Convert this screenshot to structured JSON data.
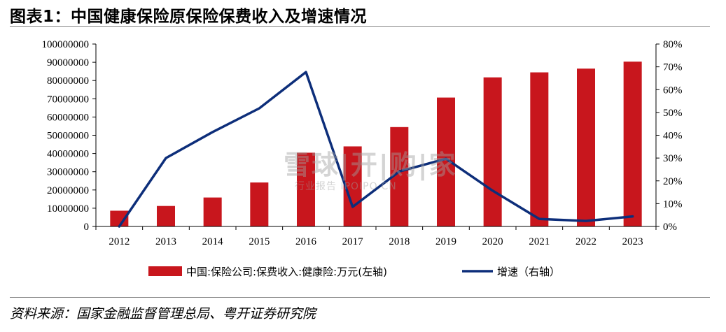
{
  "title": "图表1：中国健康保险原保险保费收入及增速情况",
  "source": "资料来源：国家金融监督管理总局、粤开证券研究院",
  "watermark": {
    "main": "雪球|开|购|家",
    "sub": "行业报告 IPOIPO.CN"
  },
  "colors": {
    "bar": "#c8161d",
    "line": "#0d2e7a",
    "axis": "#000000"
  },
  "chart_data": {
    "type": "bar",
    "categories": [
      "2012",
      "2013",
      "2014",
      "2015",
      "2016",
      "2017",
      "2018",
      "2019",
      "2020",
      "2021",
      "2022",
      "2023"
    ],
    "series": [
      {
        "name": "中国:保险公司:保费收入:健康险:万元(左轴)",
        "type": "bar",
        "axis": "left",
        "values": [
          8630000,
          11230000,
          15870000,
          24100000,
          40430000,
          43890000,
          54480000,
          70660000,
          81730000,
          84470000,
          86530000,
          90350000
        ]
      },
      {
        "name": "增速（右轴）",
        "type": "line",
        "axis": "right",
        "values": [
          0.0,
          0.3,
          0.414,
          0.518,
          0.677,
          0.086,
          0.241,
          0.297,
          0.157,
          0.033,
          0.024,
          0.044
        ]
      }
    ],
    "left_axis": {
      "min": 0,
      "max": 100000000,
      "step": 10000000,
      "tick_labels": [
        "0",
        "10000000",
        "20000000",
        "30000000",
        "40000000",
        "50000000",
        "60000000",
        "70000000",
        "80000000",
        "90000000",
        "100000000"
      ]
    },
    "right_axis": {
      "min": 0,
      "max": 0.8,
      "step": 0.1,
      "tick_labels": [
        "0%",
        "10%",
        "20%",
        "30%",
        "40%",
        "50%",
        "60%",
        "70%",
        "80%"
      ]
    },
    "legend_position": "bottom",
    "grid": false
  }
}
